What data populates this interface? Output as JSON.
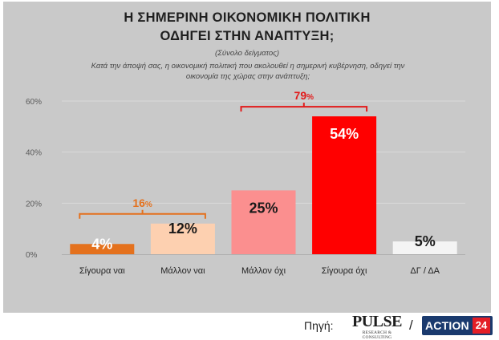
{
  "title_lines": [
    "Η ΣΗΜΕΡΙΝΗ ΟΙΚΟΝΟΜΙΚΗ ΠΟΛΙΤΙΚΗ",
    "ΟΔΗΓΕΙ ΣΤΗΝ ΑΝΑΠΤΥΞΗ;"
  ],
  "subtitle": "(Σύνολο δείγματος)",
  "question": "Κατά την άποψή σας, η οικονομική πολιτική που ακολουθεί η σημερινή κυβέρνηση, οδηγεί την οικονομία της χώρας στην ανάπτυξη;",
  "chart_data": {
    "type": "bar",
    "categories": [
      "Σίγουρα ναι",
      "Μάλλον ναι",
      "Μάλλον όχι",
      "Σίγουρα όχι",
      "ΔΓ / ΔΑ"
    ],
    "values": [
      4,
      12,
      25,
      54,
      5
    ],
    "data_labels": [
      "4%",
      "12%",
      "25%",
      "54%",
      "5%"
    ],
    "colors": [
      "#e4711d",
      "#fdd0b0",
      "#fb8f8f",
      "#ff0000",
      "#f4f4f4"
    ],
    "label_colors": [
      "#ffffff",
      "#1a1a1a",
      "#1a1a1a",
      "#ffffff",
      "#1a1a1a"
    ],
    "ylim": [
      0,
      60
    ],
    "y_ticks": [
      0,
      20,
      40,
      60
    ],
    "y_tick_labels": [
      "0%",
      "20%",
      "40%",
      "60%"
    ],
    "grid": true,
    "annotations": [
      {
        "text": "16",
        "suffix": "%",
        "spans": [
          0,
          1
        ],
        "color": "#e4711d"
      },
      {
        "text": "79",
        "suffix": "%",
        "spans": [
          2,
          3
        ],
        "color": "#e21b1b"
      }
    ]
  },
  "footer": {
    "source_label": "Πηγή:",
    "pulse_name": "PULSE",
    "pulse_sub": "RESEARCH & CONSULTING",
    "separator": "/",
    "action_text": "ACTION",
    "action_num": "24"
  }
}
